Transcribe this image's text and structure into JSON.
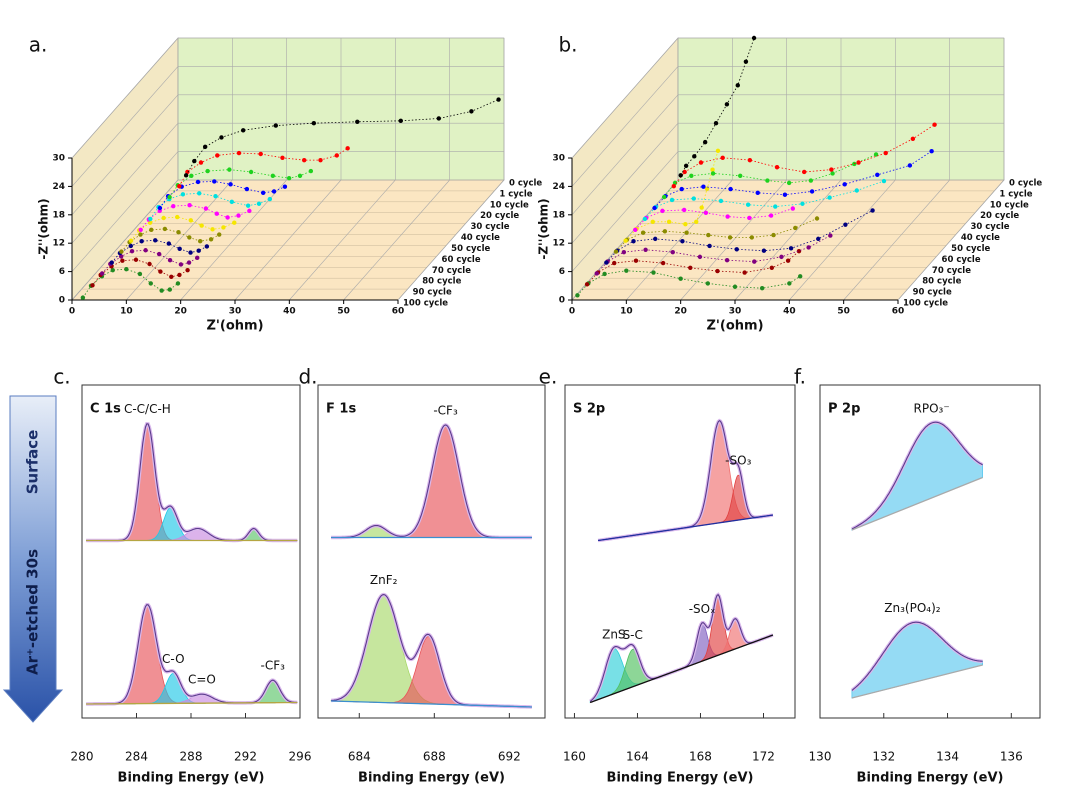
{
  "sidebar": {
    "top": "Surface",
    "bottom": "Ar⁺-etched 30s"
  },
  "chart_data": [
    {
      "type": "3d-scatter",
      "panel": "a.",
      "xlabel": "Z'(ohm)",
      "ylabel": "-Z''(ohm)",
      "xlim": [
        0,
        60
      ],
      "xticks": [
        0,
        10,
        20,
        30,
        40,
        50,
        60
      ],
      "ylim": [
        0,
        30
      ],
      "yticks": [
        0,
        6,
        12,
        18,
        24,
        30
      ],
      "grid": true,
      "series": [
        {
          "name": "0 cycle",
          "color": "#000000",
          "x": [
            1.5,
            3,
            5,
            8,
            12,
            18,
            25,
            33,
            41,
            48,
            54,
            59
          ],
          "values": [
            1,
            4,
            7,
            9,
            10.5,
            11.5,
            12,
            12.3,
            12.5,
            13,
            14.5,
            17
          ]
        },
        {
          "name": "1 cycle",
          "color": "#ff0000",
          "x": [
            2,
            3.5,
            6,
            9,
            13,
            17,
            21,
            25,
            28,
            31,
            33
          ],
          "values": [
            1,
            4,
            6,
            7.5,
            8,
            7.8,
            7,
            6.5,
            6.5,
            7.5,
            9
          ]
        },
        {
          "name": "10 cycle",
          "color": "#1fd21f",
          "x": [
            2,
            3.5,
            6,
            9,
            13,
            17,
            21,
            24,
            26,
            28
          ],
          "values": [
            1,
            3.5,
            5.5,
            6.5,
            6.8,
            6.3,
            5.5,
            5,
            5.5,
            6.5
          ]
        },
        {
          "name": "20 cycle",
          "color": "#0000ff",
          "x": [
            2,
            3.5,
            6,
            9,
            12,
            15,
            18,
            21,
            23,
            25
          ],
          "values": [
            1,
            3.5,
            5.5,
            6.5,
            6.6,
            6,
            5,
            4.2,
            4.5,
            5.5
          ]
        },
        {
          "name": "30 cycle",
          "color": "#00e0e0",
          "x": [
            2,
            3.5,
            5.5,
            8,
            11,
            14,
            17,
            20,
            22,
            24
          ],
          "values": [
            1,
            3.5,
            5.2,
            6.2,
            6.4,
            5.8,
            4.6,
            3.8,
            4.2,
            5.2
          ]
        },
        {
          "name": "40 cycle",
          "color": "#ff00ff",
          "x": [
            2,
            3.5,
            5.5,
            8,
            11,
            14,
            16,
            18,
            20,
            22
          ],
          "values": [
            1,
            3.2,
            5,
            6,
            6.2,
            5.5,
            4.4,
            3.6,
            4,
            5
          ]
        },
        {
          "name": "50 cycle",
          "color": "#f5e600",
          "x": [
            2,
            3.5,
            5.5,
            8,
            10.5,
            13,
            15,
            17,
            19,
            21
          ],
          "values": [
            1,
            3.2,
            4.8,
            5.8,
            6,
            5.3,
            4.2,
            3.4,
            3.8,
            4.8
          ]
        },
        {
          "name": "60 cycle",
          "color": "#8b8b00",
          "x": [
            2,
            3.5,
            5.5,
            7.5,
            10,
            12.5,
            14.5,
            16.5,
            18.5,
            20
          ],
          "values": [
            1,
            3,
            4.6,
            5.6,
            5.8,
            5.1,
            4,
            3.2,
            3.6,
            4.6
          ]
        },
        {
          "name": "70 cycle",
          "color": "#000080",
          "x": [
            2,
            3.5,
            5.5,
            7.5,
            10,
            12.5,
            14.5,
            16.5,
            18,
            19.5
          ],
          "values": [
            1,
            3,
            4.5,
            5.5,
            5.7,
            5,
            3.9,
            3.1,
            3.5,
            4.4
          ]
        },
        {
          "name": "80 cycle",
          "color": "#800080",
          "x": [
            2,
            3.5,
            5.5,
            7.5,
            10,
            12.5,
            14.5,
            16.5,
            18,
            19.5
          ],
          "values": [
            1,
            3,
            4.6,
            5.7,
            5.9,
            5.1,
            3.8,
            2.9,
            3.3,
            4.3
          ]
        },
        {
          "name": "90 cycle",
          "color": "#990000",
          "x": [
            2,
            3.5,
            5.5,
            7.5,
            10,
            12.5,
            14.5,
            16.5,
            18,
            19.5
          ],
          "values": [
            0.8,
            3,
            4.8,
            6,
            6.2,
            5.3,
            3.7,
            2.6,
            3,
            4
          ]
        },
        {
          "name": "100 cycle",
          "color": "#228b22",
          "x": [
            2,
            3.5,
            5.5,
            7.5,
            10,
            12.5,
            14.5,
            16.5,
            18,
            19.5
          ],
          "values": [
            0.5,
            3,
            5,
            6.3,
            6.5,
            5.5,
            3.5,
            2,
            2.2,
            3.5
          ]
        }
      ]
    },
    {
      "type": "3d-scatter",
      "panel": "b.",
      "xlabel": "Z'(ohm)",
      "ylabel": "-Z''(ohm)",
      "xlim": [
        0,
        60
      ],
      "xticks": [
        0,
        10,
        20,
        30,
        40,
        50,
        60
      ],
      "ylim": [
        0,
        30
      ],
      "yticks": [
        0,
        6,
        12,
        18,
        24,
        30
      ],
      "grid": true,
      "series": [
        {
          "name": "0 cycle",
          "color": "#000000",
          "x": [
            0.5,
            1.5,
            3,
            5,
            7,
            9,
            11,
            12.5,
            14
          ],
          "values": [
            1,
            3,
            5,
            8,
            12,
            16,
            20,
            25,
            30
          ]
        },
        {
          "name": "1 cycle",
          "color": "#ff0000",
          "x": [
            1,
            3,
            6,
            10,
            15,
            20,
            25,
            30,
            35,
            40,
            45,
            49
          ],
          "values": [
            1,
            4,
            6,
            7,
            6.5,
            5,
            4,
            4.5,
            6,
            8,
            11,
            14
          ]
        },
        {
          "name": "10 cycle",
          "color": "#1fd21f",
          "x": [
            1,
            3,
            6,
            10,
            15,
            20,
            24,
            28,
            32,
            36,
            40
          ],
          "values": [
            1,
            4,
            5.5,
            6,
            5.5,
            4.5,
            4,
            4.5,
            6,
            8,
            10
          ]
        },
        {
          "name": "20 cycle",
          "color": "#0000ff",
          "x": [
            1,
            3,
            6,
            10,
            15,
            20,
            25,
            30,
            36,
            42,
            48,
            52
          ],
          "values": [
            1,
            3.5,
            5,
            5.5,
            5,
            4.2,
            3.8,
            4.5,
            6,
            8,
            10,
            13
          ]
        },
        {
          "name": "30 cycle",
          "color": "#00e0e0",
          "x": [
            1,
            3,
            6,
            10,
            15,
            20,
            25,
            30,
            35,
            40,
            45
          ],
          "values": [
            1,
            3.5,
            5,
            5.3,
            4.8,
            4,
            3.6,
            4.2,
            5.5,
            7,
            9
          ]
        },
        {
          "name": "40 cycle",
          "color": "#ff00ff",
          "x": [
            1,
            3,
            6,
            10,
            14,
            18,
            22,
            26,
            30
          ],
          "values": [
            1,
            3.5,
            5,
            5.2,
            4.6,
            3.8,
            3.5,
            4,
            5.5
          ]
        },
        {
          "name": "50 cycle",
          "color": "#f5e600",
          "x": [
            1,
            3,
            6,
            9,
            12,
            14,
            15,
            16,
            17,
            18
          ],
          "values": [
            1,
            3.5,
            5,
            5,
            4.5,
            5,
            8,
            12,
            16,
            20
          ]
        },
        {
          "name": "60 cycle",
          "color": "#8b8b00",
          "x": [
            1,
            3,
            6,
            10,
            14,
            18,
            22,
            26,
            30,
            34,
            38
          ],
          "values": [
            1,
            3.5,
            5,
            5.3,
            5,
            4.5,
            4,
            4,
            4.5,
            6,
            8
          ]
        },
        {
          "name": "70 cycle",
          "color": "#000080",
          "x": [
            1,
            3,
            6,
            10,
            15,
            20,
            25,
            30,
            35,
            40,
            45,
            50
          ],
          "values": [
            1,
            3.5,
            5.5,
            6,
            5.5,
            4.5,
            3.8,
            3.5,
            4,
            6,
            9,
            12
          ]
        },
        {
          "name": "80 cycle",
          "color": "#800080",
          "x": [
            1,
            3,
            6,
            10,
            15,
            20,
            25,
            30,
            35,
            40,
            44
          ],
          "values": [
            1,
            3.5,
            5.5,
            6,
            5.5,
            4.5,
            3.8,
            3.5,
            4.5,
            6.5,
            9
          ]
        },
        {
          "name": "90 cycle",
          "color": "#990000",
          "x": [
            1,
            3,
            6,
            10,
            15,
            20,
            25,
            30,
            35,
            38,
            40
          ],
          "values": [
            1,
            3.5,
            5.5,
            6,
            5.5,
            4.5,
            3.8,
            3.5,
            4.5,
            6,
            8
          ]
        },
        {
          "name": "100 cycle",
          "color": "#228b22",
          "x": [
            1,
            3,
            6,
            10,
            15,
            20,
            25,
            30,
            35,
            40,
            42
          ],
          "values": [
            1,
            3.5,
            5.5,
            6.2,
            5.8,
            4.5,
            3.5,
            2.8,
            2.5,
            3.5,
            5
          ]
        }
      ]
    },
    {
      "type": "xps",
      "panel": "c.",
      "title": "C 1s",
      "xlabel": "Binding Energy (eV)",
      "xlim": [
        280,
        296
      ],
      "xticks": [
        280,
        284,
        288,
        292,
        296
      ],
      "ylim": [
        0,
        1
      ],
      "spectra": [
        {
          "range": [
            280.3,
            295.8
          ],
          "background": [
            0.03,
            0.03
          ],
          "background_color": "#b5a642",
          "peaks": [
            {
              "name": "C-C/C-H",
              "center": 284.8,
              "height": 0.78,
              "fwhm": 1.3,
              "color": "#e8555a"
            },
            {
              "center": 286.5,
              "height": 0.22,
              "fwhm": 1.2,
              "color": "#22c8e6"
            },
            {
              "center": 288.5,
              "height": 0.08,
              "fwhm": 1.8,
              "color": "#c98be0"
            },
            {
              "center": 292.6,
              "height": 0.08,
              "fwhm": 0.9,
              "color": "#5cc46a"
            }
          ]
        },
        {
          "range": [
            280.3,
            295.8
          ],
          "background": [
            0.04,
            0.05
          ],
          "background_color": "#b5a642",
          "peaks": [
            {
              "center": 284.8,
              "height": 0.66,
              "fwhm": 1.6,
              "color": "#e8555a"
            },
            {
              "name": "C-O",
              "center": 286.7,
              "height": 0.2,
              "fwhm": 1.3,
              "color": "#22c8e6"
            },
            {
              "name": "C=O",
              "center": 288.8,
              "height": 0.06,
              "fwhm": 1.8,
              "color": "#c98be0"
            },
            {
              "name": "-CF₃",
              "center": 294,
              "height": 0.15,
              "fwhm": 1.2,
              "color": "#5cc46a"
            }
          ]
        }
      ]
    },
    {
      "type": "xps",
      "panel": "d.",
      "title": "F 1s",
      "xlabel": "Binding Energy (eV)",
      "xlim": [
        681.8,
        693.9
      ],
      "xticks": [
        684,
        688,
        692
      ],
      "ylim": [
        0,
        1
      ],
      "spectra": [
        {
          "range": [
            682.5,
            693.2
          ],
          "background": [
            0.05,
            0.05
          ],
          "background_color": "#3a8fd0",
          "peaks": [
            {
              "center": 684.9,
              "height": 0.08,
              "fwhm": 1.3,
              "color": "#a8d86a"
            },
            {
              "name": "-CF₃",
              "center": 688.6,
              "height": 0.75,
              "fwhm": 1.7,
              "color": "#e8555a"
            }
          ]
        },
        {
          "range": [
            682.5,
            693.2
          ],
          "background": [
            0.06,
            0.02
          ],
          "background_color": "#3a8fd0",
          "peaks": [
            {
              "name": "ZnF₂",
              "center": 685.3,
              "height": 0.72,
              "fwhm": 2.0,
              "color": "#a8d86a"
            },
            {
              "center": 687.7,
              "height": 0.45,
              "fwhm": 1.4,
              "color": "#e8555a"
            }
          ]
        }
      ]
    },
    {
      "type": "xps",
      "panel": "e.",
      "title": "S 2p",
      "xlabel": "Binding Energy (eV)",
      "xlim": [
        159.4,
        174
      ],
      "xticks": [
        160,
        164,
        168,
        172
      ],
      "ylim": [
        0,
        1
      ],
      "spectra": [
        {
          "range": [
            161.5,
            172.6
          ],
          "background": [
            0.03,
            0.2
          ],
          "background_color": "#1f2fa0",
          "peaks": [
            {
              "center": 169.2,
              "height": 0.68,
              "fwhm": 1.3,
              "color": "#f07070"
            },
            {
              "name": "-SO₃",
              "center": 170.4,
              "height": 0.3,
              "fwhm": 0.8,
              "color": "#e04040"
            }
          ]
        },
        {
          "range": [
            161,
            172.6
          ],
          "background": [
            0.05,
            0.5
          ],
          "background_color": "#111111",
          "peaks": [
            {
              "name": "ZnS",
              "center": 162.5,
              "height": 0.3,
              "fwhm": 1.3,
              "color": "#2fd0d8"
            },
            {
              "name": "S-C",
              "center": 163.7,
              "height": 0.25,
              "fwhm": 1.1,
              "color": "#50c060"
            },
            {
              "name": "-SOₓ",
              "center": 168.1,
              "height": 0.25,
              "fwhm": 0.8,
              "color": "#8060c0"
            },
            {
              "center": 169.1,
              "height": 0.4,
              "fwhm": 0.8,
              "color": "#e04040"
            },
            {
              "center": 170.2,
              "height": 0.2,
              "fwhm": 0.8,
              "color": "#f07070"
            }
          ]
        }
      ]
    },
    {
      "type": "xps",
      "panel": "f.",
      "title": "P 2p",
      "xlabel": "Binding Energy (eV)",
      "xlim": [
        130,
        136.9
      ],
      "xticks": [
        130,
        132,
        134,
        136
      ],
      "ylim": [
        0,
        1
      ],
      "spectra": [
        {
          "range": [
            131,
            135.1
          ],
          "background": [
            0.1,
            0.45
          ],
          "background_color": "#aaaaaa",
          "peaks": [
            {
              "name": "RPO₃⁻",
              "center": 133.5,
              "height": 0.5,
              "fwhm": 2.0,
              "color": "#5cc8ee"
            }
          ]
        },
        {
          "range": [
            131,
            135.1
          ],
          "background": [
            0.08,
            0.3
          ],
          "background_color": "#aaaaaa",
          "peaks": [
            {
              "name": "Zn₃(PO₄)₂",
              "center": 132.9,
              "height": 0.4,
              "fwhm": 2.2,
              "color": "#5cc8ee"
            }
          ]
        }
      ]
    }
  ]
}
